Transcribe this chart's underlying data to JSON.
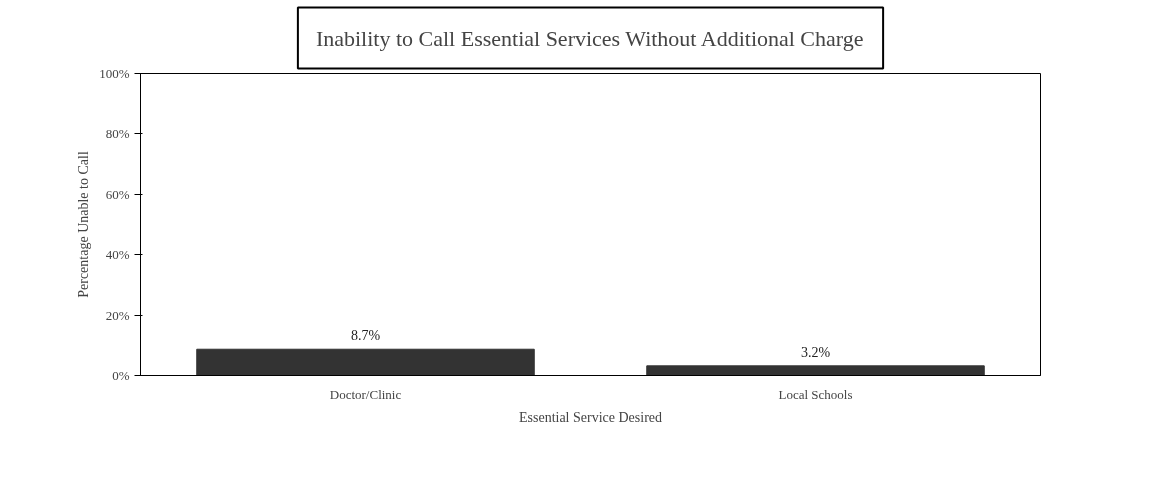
{
  "chart_data": {
    "type": "bar",
    "title": "Inability to Call Essential Services Without Additional Charge",
    "categories": [
      "Doctor/Clinic",
      "Local Schools"
    ],
    "values": [
      8.7,
      3.2
    ],
    "value_labels": [
      "8.7%",
      "3.2%"
    ],
    "color": "#333333",
    "xlabel": "Essential Service Desired",
    "ylabel": "Percentage Unable to Call",
    "ylim": [
      0,
      100
    ],
    "yticks": [
      {
        "value": 0,
        "label": "0%"
      },
      {
        "value": 20,
        "label": "20%"
      },
      {
        "value": 40,
        "label": "40%"
      },
      {
        "value": 60,
        "label": "60%"
      },
      {
        "value": 80,
        "label": "80%"
      },
      {
        "value": 100,
        "label": "100%"
      }
    ],
    "grid": false
  }
}
